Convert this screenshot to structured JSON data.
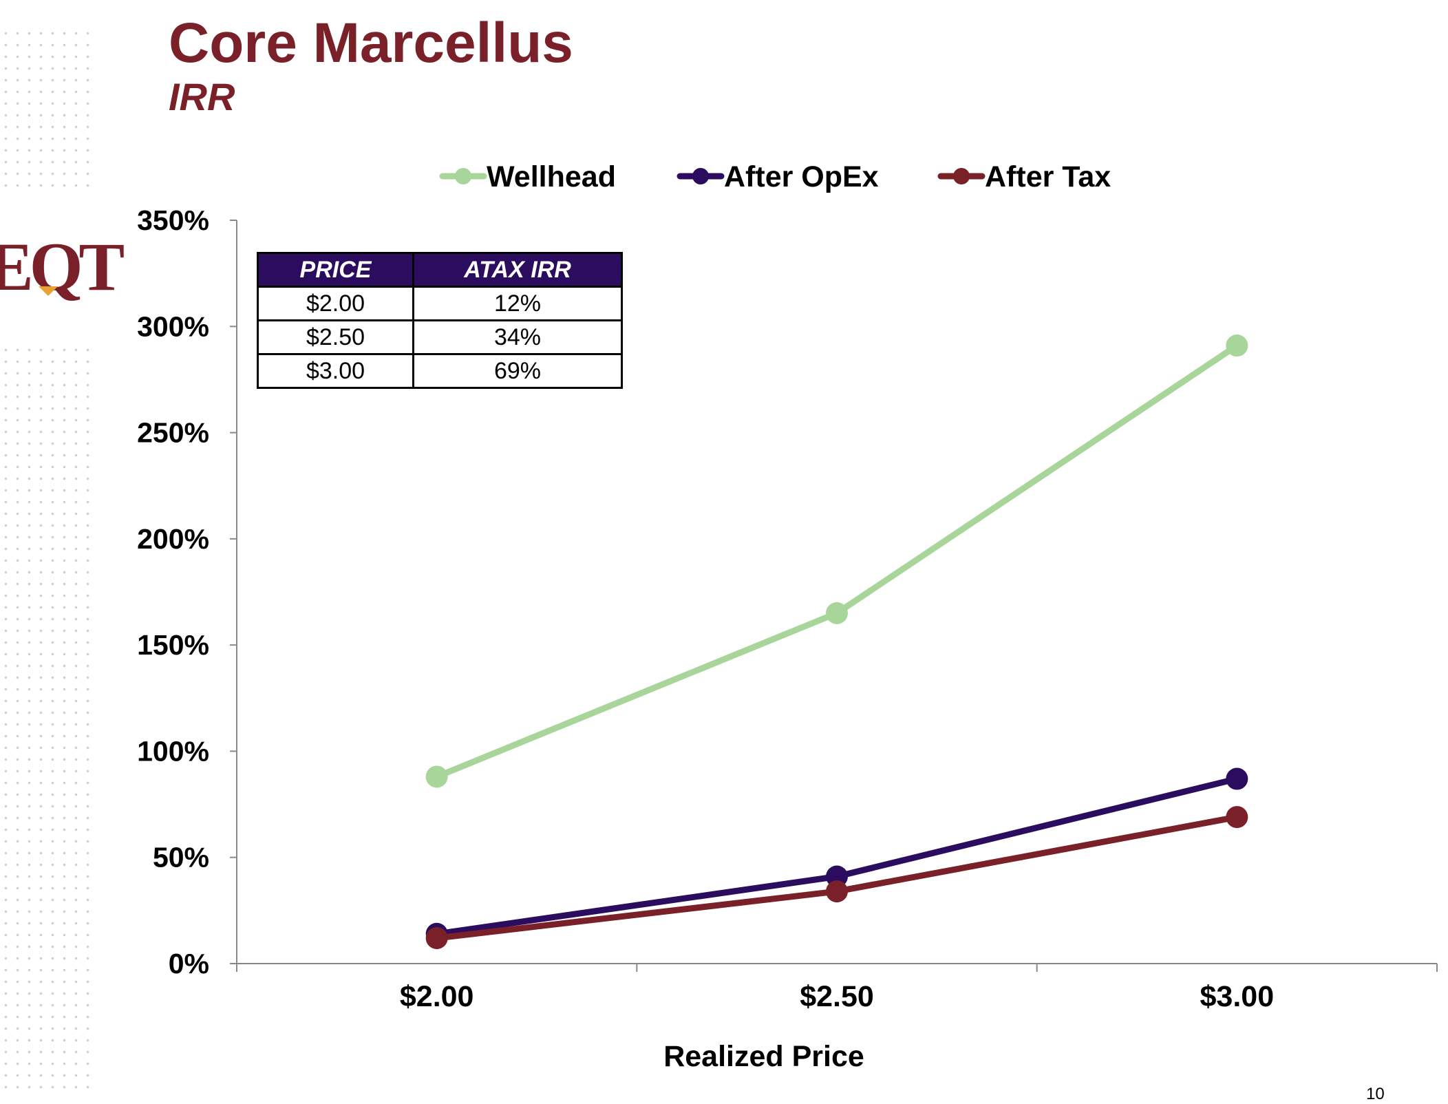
{
  "header": {
    "title": "Core Marcellus",
    "subtitle": "IRR",
    "logo_text": "EQT"
  },
  "table": {
    "headers": [
      "PRICE",
      "ATAX IRR"
    ],
    "rows": [
      [
        "$2.00",
        "12%"
      ],
      [
        "$2.50",
        "34%"
      ],
      [
        "$3.00",
        "69%"
      ]
    ]
  },
  "chart_data": {
    "type": "line",
    "categories": [
      "$2.00",
      "$2.50",
      "$3.00"
    ],
    "series": [
      {
        "name": "Wellhead",
        "color": "#a8d59a",
        "values": [
          88,
          165,
          291
        ]
      },
      {
        "name": "After OpEx",
        "color": "#2b0c5e",
        "values": [
          14,
          41,
          87
        ]
      },
      {
        "name": "After Tax",
        "color": "#7a2029",
        "values": [
          12,
          34,
          69
        ]
      }
    ],
    "xlabel": "Realized Price",
    "ylabel": "",
    "ylim": [
      0,
      350
    ],
    "yticks": [
      0,
      50,
      100,
      150,
      200,
      250,
      300,
      350
    ],
    "ytick_labels": [
      "0%",
      "50%",
      "100%",
      "150%",
      "200%",
      "250%",
      "300%",
      "350%"
    ],
    "grid": false,
    "legend_position": "top"
  },
  "footer": {
    "page_number": "10"
  }
}
